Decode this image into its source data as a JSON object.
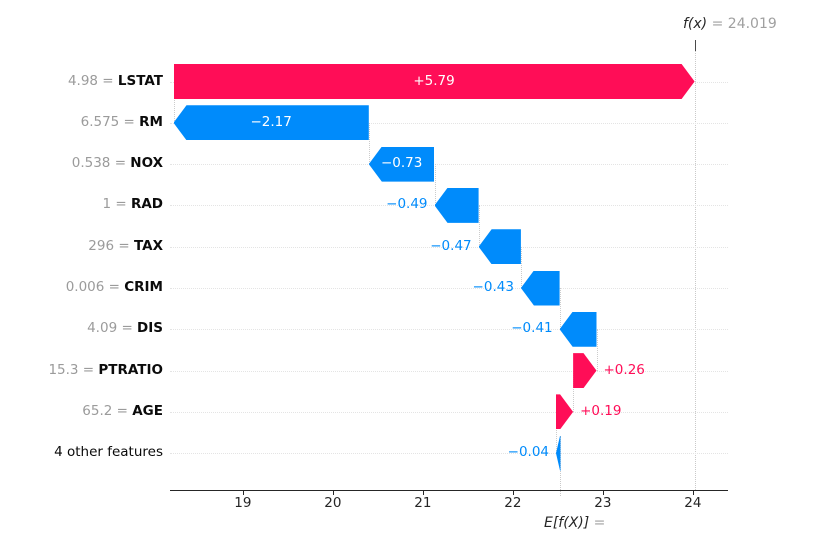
{
  "figure": {
    "fx_label": "f(x)",
    "fx_equals": "=",
    "fx_value": "24.019",
    "efx_label": "E[f(X)]",
    "efx_equals": "=",
    "colors": {
      "positive": "#ff0d57",
      "negative": "#008bfb",
      "axis": "#262626",
      "muted_text": "#9b9b9b",
      "feature_text": "#0b0b0b",
      "grid_dotted": "#e4e4e4"
    }
  },
  "chart_data": {
    "type": "bar",
    "variant": "shap-waterfall",
    "title": "f(x) = 24.019",
    "xlabel": "E[f(X)] =",
    "fx_output": 24.019,
    "x_ticks": [
      19,
      20,
      21,
      22,
      23,
      24
    ],
    "x_range": [
      18.19,
      24.39
    ],
    "grid": "dotted-row-lines",
    "legend_position": "none",
    "rows": [
      {
        "feature": "LSTAT",
        "feature_value": "4.98",
        "contribution": 5.79,
        "label": "+5.79",
        "sign": "positive"
      },
      {
        "feature": "RM",
        "feature_value": "6.575",
        "contribution": -2.17,
        "label": "−2.17",
        "sign": "negative"
      },
      {
        "feature": "NOX",
        "feature_value": "0.538",
        "contribution": -0.73,
        "label": "−0.73",
        "sign": "negative"
      },
      {
        "feature": "RAD",
        "feature_value": "1",
        "contribution": -0.49,
        "label": "−0.49",
        "sign": "negative"
      },
      {
        "feature": "TAX",
        "feature_value": "296",
        "contribution": -0.47,
        "label": "−0.47",
        "sign": "negative"
      },
      {
        "feature": "CRIM",
        "feature_value": "0.006",
        "contribution": -0.43,
        "label": "−0.43",
        "sign": "negative"
      },
      {
        "feature": "DIS",
        "feature_value": "4.09",
        "contribution": -0.41,
        "label": "−0.41",
        "sign": "negative"
      },
      {
        "feature": "PTRATIO",
        "feature_value": "15.3",
        "contribution": 0.26,
        "label": "+0.26",
        "sign": "positive"
      },
      {
        "feature": "AGE",
        "feature_value": "65.2",
        "contribution": 0.19,
        "label": "+0.19",
        "sign": "positive"
      },
      {
        "feature": "4 other features",
        "feature_value": "",
        "contribution": -0.04,
        "label": "−0.04",
        "sign": "negative"
      }
    ]
  }
}
